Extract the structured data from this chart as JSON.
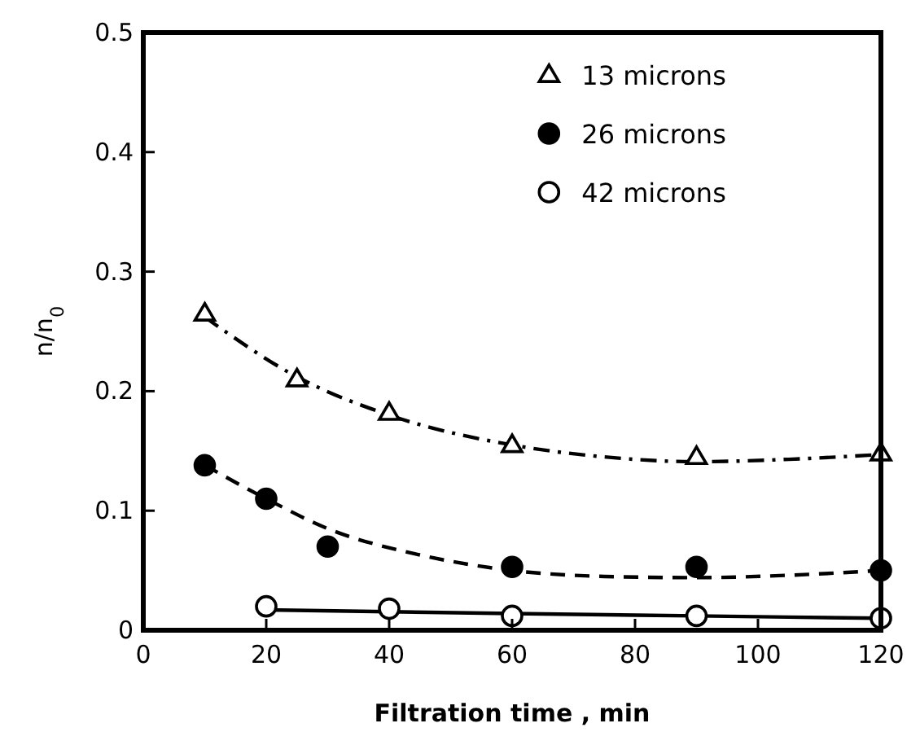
{
  "chart_data": {
    "type": "scatter",
    "xlabel": "Filtration time , min",
    "ylabel": "n/n$_{0}$",
    "xlim": [
      0,
      120
    ],
    "ylim": [
      0,
      0.5
    ],
    "xticks": [
      0,
      20,
      40,
      60,
      80,
      100,
      120
    ],
    "yticks": [
      {
        "value": 0,
        "label": "0"
      },
      {
        "value": 0.1,
        "label": "0.1"
      },
      {
        "value": 0.2,
        "label": "0.2"
      },
      {
        "value": 0.3,
        "label": "0.3"
      },
      {
        "value": 0.4,
        "label": "0.4"
      },
      {
        "value": 0.5,
        "label": "0.5"
      }
    ],
    "legend": "top right",
    "grid": false,
    "series": [
      {
        "name": "13 microns",
        "marker": "triangle",
        "color": "#ffffff",
        "x": [
          10,
          25,
          40,
          60,
          90,
          120
        ],
        "values": [
          0.265,
          0.21,
          0.182,
          0.155,
          0.145,
          0.148
        ]
      },
      {
        "name": "26 microns",
        "marker": "circle",
        "color": "#000000",
        "x": [
          10,
          20,
          30,
          60,
          90,
          120
        ],
        "values": [
          0.138,
          0.11,
          0.07,
          0.053,
          0.053,
          0.05
        ]
      },
      {
        "name": "42 microns",
        "marker": "circle",
        "color": "#ffffff",
        "x": [
          20,
          40,
          60,
          90,
          120
        ],
        "values": [
          0.02,
          0.018,
          0.012,
          0.012,
          0.01
        ]
      },
      {
        "type": "line",
        "line_style": "dashdot",
        "color": "#000000",
        "x": [
          10,
          25,
          40,
          60,
          75,
          90,
          105,
          120
        ],
        "values": [
          0.262,
          0.212,
          0.18,
          0.155,
          0.145,
          0.141,
          0.143,
          0.147
        ]
      },
      {
        "type": "line",
        "line_style": "dashed",
        "color": "#000000",
        "x": [
          10,
          20,
          30,
          45,
          60,
          75,
          90,
          105,
          120
        ],
        "values": [
          0.138,
          0.11,
          0.085,
          0.063,
          0.05,
          0.045,
          0.044,
          0.046,
          0.05
        ]
      },
      {
        "type": "line",
        "line_style": "solid",
        "color": "#000000",
        "x": [
          20,
          60,
          90,
          120
        ],
        "values": [
          0.017,
          0.014,
          0.012,
          0.01
        ]
      }
    ]
  }
}
